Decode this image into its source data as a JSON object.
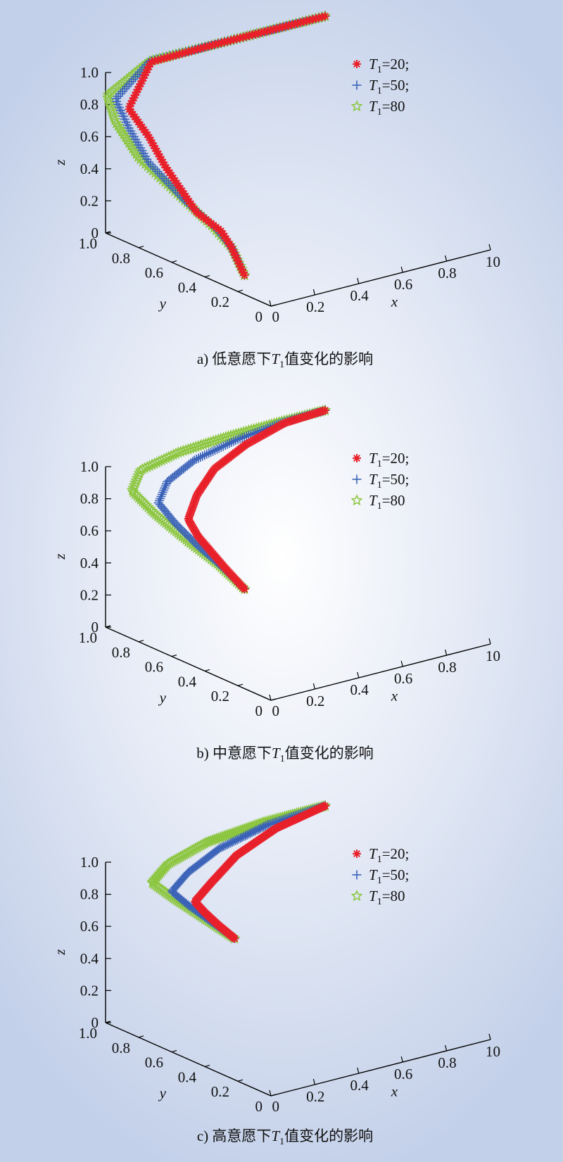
{
  "chart_data": [
    {
      "type": "scatter",
      "title": "a) 低意愿下T1值变化的影响",
      "caption": {
        "prefix": "a) 低意愿下",
        "var": "T",
        "sub": "1",
        "suffix": "值变化的影响"
      },
      "xlabel": "x",
      "ylabel": "y",
      "zlabel": "z",
      "x_ticks": [
        "0",
        "0.2",
        "0.4",
        "0.6",
        "0.8",
        "10"
      ],
      "y_ticks": [
        "0",
        "0.2",
        "0.4",
        "0.6",
        "0.8",
        "1.0"
      ],
      "z_ticks": [
        "0",
        "0.2",
        "0.4",
        "0.6",
        "0.8",
        "1.0"
      ],
      "xlim": [
        0,
        1
      ],
      "ylim": [
        0,
        1
      ],
      "zlim": [
        0,
        1
      ],
      "legend_position": "top-right",
      "series": [
        {
          "name": "T1=20;",
          "name_parts": {
            "var": "T",
            "sub": "1",
            "rest": "=20;"
          },
          "marker": "asterisk",
          "color": "#e8202a",
          "points": [
            [
              0.0,
              0.16,
              0.12
            ],
            [
              0.0,
              0.24,
              0.26
            ],
            [
              0.0,
              0.3,
              0.33
            ],
            [
              0.0,
              0.45,
              0.38
            ],
            [
              0.0,
              0.64,
              0.58
            ],
            [
              0.0,
              0.74,
              0.72
            ],
            [
              0.0,
              0.86,
              0.84
            ],
            [
              0.2,
              0.99,
              1.0
            ],
            [
              0.5,
              1.0,
              1.0
            ],
            [
              0.8,
              1.0,
              1.0
            ],
            [
              1.0,
              1.0,
              1.0
            ]
          ]
        },
        {
          "name": "T1=50;",
          "name_parts": {
            "var": "T",
            "sub": "1",
            "rest": "=50;"
          },
          "marker": "plus",
          "color": "#3a62b8",
          "points": [
            [
              0.0,
              0.16,
              0.12
            ],
            [
              0.0,
              0.24,
              0.26
            ],
            [
              0.0,
              0.34,
              0.34
            ],
            [
              0.0,
              0.52,
              0.42
            ],
            [
              0.0,
              0.74,
              0.56
            ],
            [
              0.0,
              0.86,
              0.72
            ],
            [
              0.0,
              0.94,
              0.86
            ],
            [
              0.2,
              1.0,
              1.0
            ],
            [
              0.5,
              1.0,
              1.0
            ],
            [
              0.8,
              1.0,
              1.0
            ],
            [
              1.0,
              1.0,
              1.0
            ]
          ]
        },
        {
          "name": "T1=80",
          "name_parts": {
            "var": "T",
            "sub": "1",
            "rest": "=80"
          },
          "marker": "star",
          "color": "#8cc63f",
          "points": [
            [
              0.0,
              0.16,
              0.12
            ],
            [
              0.0,
              0.24,
              0.26
            ],
            [
              0.0,
              0.36,
              0.34
            ],
            [
              0.0,
              0.58,
              0.45
            ],
            [
              0.0,
              0.8,
              0.56
            ],
            [
              0.0,
              0.94,
              0.72
            ],
            [
              0.0,
              0.99,
              0.86
            ],
            [
              0.2,
              1.0,
              1.0
            ],
            [
              0.5,
              1.0,
              1.0
            ],
            [
              0.8,
              1.0,
              1.0
            ],
            [
              1.0,
              1.0,
              1.0
            ]
          ]
        }
      ]
    },
    {
      "type": "scatter",
      "title": "b) 中意愿下T1值变化的影响",
      "caption": {
        "prefix": "b) 中意愿下",
        "var": "T",
        "sub": "1",
        "suffix": "值变化的影响"
      },
      "xlabel": "x",
      "ylabel": "y",
      "zlabel": "z",
      "x_ticks": [
        "0",
        "0.2",
        "0.4",
        "0.6",
        "0.8",
        "10"
      ],
      "y_ticks": [
        "0",
        "0.2",
        "0.4",
        "0.6",
        "0.8",
        "1.0"
      ],
      "z_ticks": [
        "0",
        "0.2",
        "0.4",
        "0.6",
        "0.8",
        "1.0"
      ],
      "xlim": [
        0,
        1
      ],
      "ylim": [
        0,
        1
      ],
      "zlim": [
        0,
        1
      ],
      "legend_position": "top-right",
      "series": [
        {
          "name": "T1=20;",
          "name_parts": {
            "var": "T",
            "sub": "1",
            "rest": "=20;"
          },
          "marker": "asterisk",
          "color": "#e8202a",
          "points": [
            [
              0.0,
              0.16,
              0.62
            ],
            [
              0.0,
              0.28,
              0.7
            ],
            [
              0.0,
              0.36,
              0.76
            ],
            [
              0.0,
              0.44,
              0.82
            ],
            [
              0.0,
              0.5,
              0.9
            ],
            [
              0.1,
              0.58,
              0.98
            ],
            [
              0.3,
              0.74,
              1.0
            ],
            [
              0.55,
              0.88,
              1.0
            ],
            [
              0.8,
              0.98,
              1.0
            ],
            [
              1.0,
              1.0,
              1.0
            ]
          ]
        },
        {
          "name": "T1=50;",
          "name_parts": {
            "var": "T",
            "sub": "1",
            "rest": "=50;"
          },
          "marker": "plus",
          "color": "#3a62b8",
          "points": [
            [
              0.0,
              0.16,
              0.62
            ],
            [
              0.0,
              0.3,
              0.7
            ],
            [
              0.0,
              0.44,
              0.76
            ],
            [
              0.0,
              0.58,
              0.84
            ],
            [
              0.0,
              0.68,
              0.92
            ],
            [
              0.1,
              0.76,
              0.98
            ],
            [
              0.3,
              0.86,
              1.0
            ],
            [
              0.55,
              0.94,
              1.0
            ],
            [
              0.8,
              0.99,
              1.0
            ],
            [
              1.0,
              1.0,
              1.0
            ]
          ]
        },
        {
          "name": "T1=80",
          "name_parts": {
            "var": "T",
            "sub": "1",
            "rest": "=80"
          },
          "marker": "star",
          "color": "#8cc63f",
          "points": [
            [
              0.0,
              0.16,
              0.62
            ],
            [
              0.0,
              0.32,
              0.7
            ],
            [
              0.0,
              0.5,
              0.76
            ],
            [
              0.0,
              0.7,
              0.84
            ],
            [
              0.0,
              0.84,
              0.92
            ],
            [
              0.1,
              0.92,
              0.98
            ],
            [
              0.3,
              0.96,
              1.0
            ],
            [
              0.55,
              0.99,
              1.0
            ],
            [
              0.8,
              1.0,
              1.0
            ],
            [
              1.0,
              1.0,
              1.0
            ]
          ]
        }
      ]
    },
    {
      "type": "scatter",
      "title": "c) 高意愿下T1值变化的影响",
      "caption": {
        "prefix": "c) 高意愿下",
        "var": "T",
        "sub": "1",
        "suffix": "值变化的影响"
      },
      "xlabel": "x",
      "ylabel": "y",
      "zlabel": "z",
      "x_ticks": [
        "0",
        "0.2",
        "0.4",
        "0.6",
        "0.8",
        "10"
      ],
      "y_ticks": [
        "0",
        "0.2",
        "0.4",
        "0.6",
        "0.8",
        "1.0"
      ],
      "z_ticks": [
        "0",
        "0.2",
        "0.4",
        "0.6",
        "0.8",
        "1.0"
      ],
      "xlim": [
        0,
        1
      ],
      "ylim": [
        0,
        1
      ],
      "zlim": [
        0,
        1
      ],
      "legend_position": "top-right",
      "series": [
        {
          "name": "T1=20;",
          "name_parts": {
            "var": "T",
            "sub": "1",
            "rest": "=20;"
          },
          "marker": "asterisk",
          "color": "#e8202a",
          "points": [
            [
              0.0,
              0.22,
              0.88
            ],
            [
              0.0,
              0.32,
              0.92
            ],
            [
              0.0,
              0.4,
              0.96
            ],
            [
              0.0,
              0.46,
              1.0
            ],
            [
              0.15,
              0.56,
              1.02
            ],
            [
              0.4,
              0.74,
              1.02
            ],
            [
              0.7,
              0.9,
              1.01
            ],
            [
              1.0,
              1.0,
              1.0
            ]
          ]
        },
        {
          "name": "T1=50;",
          "name_parts": {
            "var": "T",
            "sub": "1",
            "rest": "=50;"
          },
          "marker": "plus",
          "color": "#3a62b8",
          "points": [
            [
              0.0,
              0.22,
              0.88
            ],
            [
              0.0,
              0.36,
              0.92
            ],
            [
              0.0,
              0.5,
              0.96
            ],
            [
              0.0,
              0.6,
              1.0
            ],
            [
              0.15,
              0.7,
              1.02
            ],
            [
              0.4,
              0.84,
              1.02
            ],
            [
              0.7,
              0.95,
              1.01
            ],
            [
              1.0,
              1.0,
              1.0
            ]
          ]
        },
        {
          "name": "T1=80",
          "name_parts": {
            "var": "T",
            "sub": "1",
            "rest": "=80"
          },
          "marker": "star",
          "color": "#8cc63f",
          "points": [
            [
              0.0,
              0.22,
              0.88
            ],
            [
              0.0,
              0.4,
              0.92
            ],
            [
              0.0,
              0.58,
              0.96
            ],
            [
              0.0,
              0.72,
              1.0
            ],
            [
              0.15,
              0.82,
              1.02
            ],
            [
              0.4,
              0.92,
              1.02
            ],
            [
              0.7,
              0.98,
              1.01
            ],
            [
              1.0,
              1.0,
              1.0
            ]
          ]
        }
      ]
    }
  ]
}
